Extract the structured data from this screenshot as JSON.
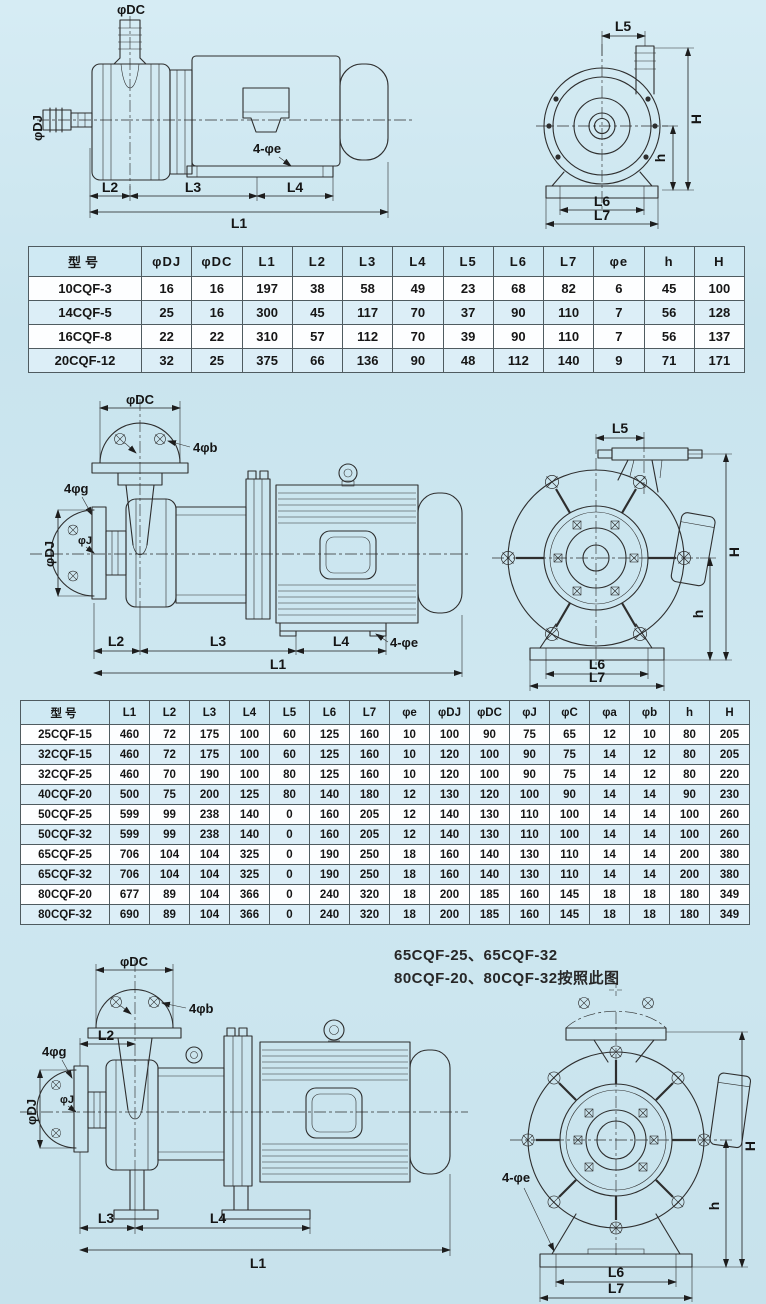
{
  "page": {
    "bg": "#cde8f1"
  },
  "table1": {
    "headers": [
      "型号",
      "φDJ",
      "φDC",
      "L1",
      "L2",
      "L3",
      "L4",
      "L5",
      "L6",
      "L7",
      "φe",
      "h",
      "H"
    ],
    "rows": [
      [
        "10CQF-3",
        "16",
        "16",
        "197",
        "38",
        "58",
        "49",
        "23",
        "68",
        "82",
        "6",
        "45",
        "100"
      ],
      [
        "14CQF-5",
        "25",
        "16",
        "300",
        "45",
        "117",
        "70",
        "37",
        "90",
        "110",
        "7",
        "56",
        "128"
      ],
      [
        "16CQF-8",
        "22",
        "22",
        "310",
        "57",
        "112",
        "70",
        "39",
        "90",
        "110",
        "7",
        "56",
        "137"
      ],
      [
        "20CQF-12",
        "32",
        "25",
        "375",
        "66",
        "136",
        "90",
        "48",
        "112",
        "140",
        "9",
        "71",
        "171"
      ]
    ]
  },
  "table2": {
    "headers": [
      "型号",
      "L1",
      "L2",
      "L3",
      "L4",
      "L5",
      "L6",
      "L7",
      "φe",
      "φDJ",
      "φDC",
      "φJ",
      "φC",
      "φa",
      "φb",
      "h",
      "H"
    ],
    "rows": [
      [
        "25CQF-15",
        "460",
        "72",
        "175",
        "100",
        "60",
        "125",
        "160",
        "10",
        "100",
        "90",
        "75",
        "65",
        "12",
        "10",
        "80",
        "205"
      ],
      [
        "32CQF-15",
        "460",
        "72",
        "175",
        "100",
        "60",
        "125",
        "160",
        "10",
        "120",
        "100",
        "90",
        "75",
        "14",
        "12",
        "80",
        "205"
      ],
      [
        "32CQF-25",
        "460",
        "70",
        "190",
        "100",
        "80",
        "125",
        "160",
        "10",
        "120",
        "100",
        "90",
        "75",
        "14",
        "12",
        "80",
        "220"
      ],
      [
        "40CQF-20",
        "500",
        "75",
        "200",
        "125",
        "80",
        "140",
        "180",
        "12",
        "130",
        "120",
        "100",
        "90",
        "14",
        "14",
        "90",
        "230"
      ],
      [
        "50CQF-25",
        "599",
        "99",
        "238",
        "140",
        "0",
        "160",
        "205",
        "12",
        "140",
        "130",
        "110",
        "100",
        "14",
        "14",
        "100",
        "260"
      ],
      [
        "50CQF-32",
        "599",
        "99",
        "238",
        "140",
        "0",
        "160",
        "205",
        "12",
        "140",
        "130",
        "110",
        "100",
        "14",
        "14",
        "100",
        "260"
      ],
      [
        "65CQF-25",
        "706",
        "104",
        "104",
        "325",
        "0",
        "190",
        "250",
        "18",
        "160",
        "140",
        "130",
        "110",
        "14",
        "14",
        "200",
        "380"
      ],
      [
        "65CQF-32",
        "706",
        "104",
        "104",
        "325",
        "0",
        "190",
        "250",
        "18",
        "160",
        "140",
        "130",
        "110",
        "14",
        "14",
        "200",
        "380"
      ],
      [
        "80CQF-20",
        "677",
        "89",
        "104",
        "366",
        "0",
        "240",
        "320",
        "18",
        "200",
        "185",
        "160",
        "145",
        "18",
        "18",
        "180",
        "349"
      ],
      [
        "80CQF-32",
        "690",
        "89",
        "104",
        "366",
        "0",
        "240",
        "320",
        "18",
        "200",
        "185",
        "160",
        "145",
        "18",
        "18",
        "180",
        "349"
      ]
    ]
  },
  "note": {
    "line1": "65CQF-25、65CQF-32",
    "line2": "80CQF-20、80CQF-32按照此图"
  },
  "drawings": {
    "d1side": {
      "phiDC": "φDC",
      "phiDJ": "φDJ",
      "holes": "4-φe",
      "L1": "L1",
      "L2": "L2",
      "L3": "L3",
      "L4": "L4"
    },
    "d1front": {
      "L5": "L5",
      "H": "H",
      "h": "h",
      "L6": "L6",
      "L7": "L7"
    },
    "d2side": {
      "phiDC": "φDC",
      "fourPhiB": "4φb",
      "fourPhiG": "4φg",
      "phiJ": "φJ",
      "phiDJ": "φDJ",
      "holes": "4-φe",
      "L1": "L1",
      "L2": "L2",
      "L3": "L3",
      "L4": "L4"
    },
    "d2front": {
      "L5": "L5",
      "H": "H",
      "h": "h",
      "L6": "L6",
      "L7": "L7"
    },
    "d3side": {
      "phiDC": "φDC",
      "fourPhiB": "4φb",
      "fourPhiG": "4φg",
      "phiJ": "φJ",
      "phiDJ": "φDJ",
      "L1": "L1",
      "L2": "L2",
      "L3": "L3",
      "L4": "L4"
    },
    "d3front": {
      "holes": "4-φe",
      "H": "H",
      "h": "h",
      "L6": "L6",
      "L7": "L7"
    }
  }
}
